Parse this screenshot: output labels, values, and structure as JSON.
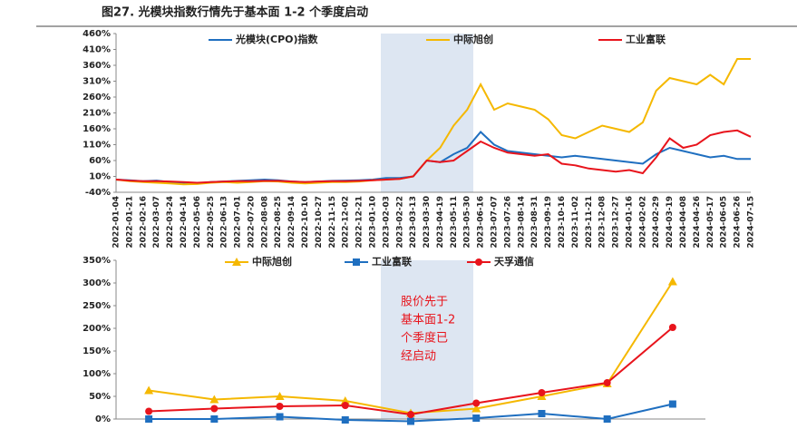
{
  "title": "图27. 光模块指数行情先于基本面 1-2 个季度启动",
  "chart_data": [
    {
      "type": "line",
      "categories": [
        "2022-01-04",
        "2022-01-21",
        "2022-02-16",
        "2022-03-07",
        "2022-03-24",
        "2022-04-14",
        "2022-05-06",
        "2022-05-25",
        "2022-06-13",
        "2022-07-01",
        "2022-07-20",
        "2022-08-08",
        "2022-08-25",
        "2022-09-14",
        "2022-10-10",
        "2022-10-27",
        "2022-11-15",
        "2022-12-02",
        "2022-12-21",
        "2023-01-10",
        "2023-02-03",
        "2023-02-22",
        "2023-03-13",
        "2023-03-30",
        "2023-04-19",
        "2023-05-11",
        "2023-05-30",
        "2023-06-16",
        "2023-07-07",
        "2023-07-26",
        "2023-08-14",
        "2023-08-31",
        "2023-09-19",
        "2023-10-16",
        "2023-11-02",
        "2023-11-21",
        "2023-12-08",
        "2023-12-27",
        "2024-01-16",
        "2024-02-02",
        "2024-02-29",
        "2024-03-19",
        "2024-04-08",
        "2024-04-26",
        "2024-05-17",
        "2024-06-05",
        "2024-06-26",
        "2024-07-15"
      ],
      "series": [
        {
          "name": "光模块(CPO)指数",
          "color": "#1f6fc0",
          "values": [
            0,
            -2,
            -5,
            -3,
            -8,
            -10,
            -12,
            -8,
            -6,
            -4,
            -2,
            0,
            -2,
            -6,
            -8,
            -6,
            -4,
            -3,
            -2,
            0,
            5,
            5,
            10,
            60,
            55,
            80,
            100,
            150,
            110,
            90,
            85,
            80,
            75,
            70,
            75,
            70,
            65,
            60,
            55,
            50,
            80,
            100,
            90,
            80,
            70,
            75,
            65,
            65
          ]
        },
        {
          "name": "中际旭创",
          "color": "#f5b800",
          "values": [
            0,
            -5,
            -8,
            -10,
            -12,
            -15,
            -14,
            -10,
            -8,
            -10,
            -8,
            -5,
            -6,
            -10,
            -12,
            -10,
            -8,
            -8,
            -6,
            -2,
            0,
            2,
            10,
            60,
            100,
            170,
            220,
            300,
            220,
            240,
            230,
            220,
            190,
            140,
            130,
            150,
            170,
            160,
            150,
            180,
            280,
            320,
            310,
            300,
            330,
            300,
            380,
            380
          ]
        },
        {
          "name": "工业富联",
          "color": "#e8141c",
          "values": [
            0,
            -3,
            -5,
            -5,
            -6,
            -8,
            -10,
            -8,
            -6,
            -5,
            -5,
            -4,
            -4,
            -6,
            -8,
            -6,
            -5,
            -5,
            -4,
            -2,
            0,
            2,
            10,
            60,
            55,
            60,
            90,
            120,
            100,
            85,
            80,
            75,
            80,
            50,
            45,
            35,
            30,
            25,
            30,
            20,
            70,
            130,
            100,
            110,
            140,
            150,
            155,
            135
          ]
        }
      ],
      "ylim": [
        -40,
        460
      ],
      "yticks": [
        {
          "value": -40,
          "label": "-40%"
        },
        {
          "value": 10,
          "label": "10%"
        },
        {
          "value": 60,
          "label": "60%"
        },
        {
          "value": 110,
          "label": "110%"
        },
        {
          "value": 160,
          "label": "160%"
        },
        {
          "value": 210,
          "label": "210%"
        },
        {
          "value": 260,
          "label": "260%"
        },
        {
          "value": 310,
          "label": "310%"
        },
        {
          "value": 360,
          "label": "360%"
        },
        {
          "value": 410,
          "label": "410%"
        },
        {
          "value": 460,
          "label": "460%"
        }
      ],
      "grid": false
    },
    {
      "type": "line",
      "categories": [
        null,
        null,
        null,
        null,
        null,
        null,
        null,
        null,
        null
      ],
      "series": [
        {
          "name": "中际旭创",
          "color": "#f5b800",
          "marker": "triangle",
          "values": [
            63,
            43,
            50,
            40,
            13,
            23,
            50,
            78,
            303
          ]
        },
        {
          "name": "工业富联",
          "color": "#1f6fc0",
          "marker": "square",
          "values": [
            0,
            0,
            5,
            -2,
            -5,
            2,
            12,
            0,
            33
          ]
        },
        {
          "name": "天孚通信",
          "color": "#e8141c",
          "marker": "circle",
          "values": [
            17,
            23,
            28,
            30,
            10,
            35,
            58,
            80,
            202
          ]
        }
      ],
      "annotation": [
        "股价先于",
        "基本面1-2",
        "个季度已",
        "经启动"
      ],
      "ylim": [
        0,
        350
      ],
      "yticks": [
        {
          "value": 0,
          "label": "0%"
        },
        {
          "value": 50,
          "label": "50%"
        },
        {
          "value": 100,
          "label": "100%"
        },
        {
          "value": 150,
          "label": "150%"
        },
        {
          "value": 200,
          "label": "200%"
        },
        {
          "value": 250,
          "label": "250%"
        },
        {
          "value": 300,
          "label": "300%"
        },
        {
          "value": 350,
          "label": "350%"
        }
      ],
      "grid": false
    }
  ]
}
